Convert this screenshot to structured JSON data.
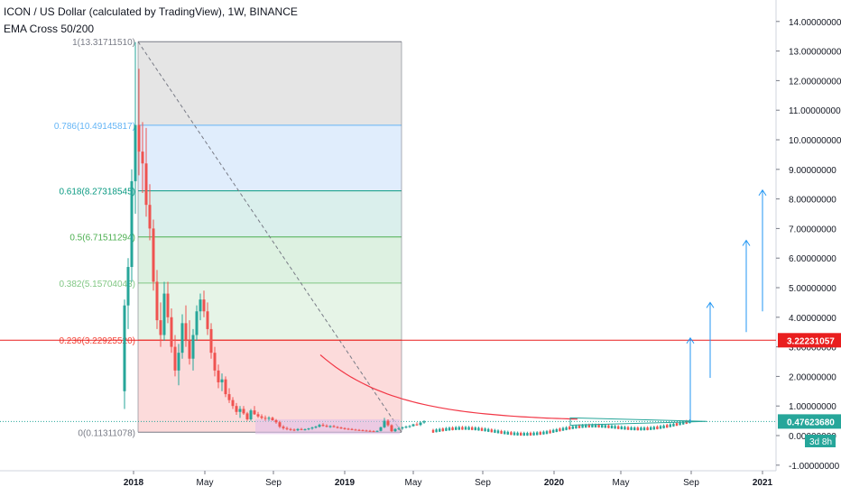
{
  "header": {
    "title": "ICON / US Dollar (calculated by TradingView), 1W, BINANCE",
    "indicator": "EMA Cross 50/200"
  },
  "colors": {
    "up": "#26a69a",
    "down": "#ef5350",
    "price_line": "#e91e1e",
    "last_price": "#26a69a",
    "arrow": "#2196f3",
    "ema": "#f23645"
  },
  "chart_data": {
    "type": "candlestick",
    "symbol": "ICX/USD",
    "timeframe": "1W",
    "y_axis": {
      "min": -1.0,
      "max": 14.0,
      "ticks": [
        "-1.00000000",
        "0.00000000",
        "1.00000000",
        "2.00000000",
        "3.00000000",
        "4.00000000",
        "5.00000000",
        "6.00000000",
        "7.00000000",
        "8.00000000",
        "9.00000000",
        "10.00000000",
        "11.00000000",
        "12.00000000",
        "13.00000000",
        "14.00000000"
      ]
    },
    "x_axis": {
      "ticks": [
        "2018",
        "May",
        "Sep",
        "2019",
        "May",
        "Sep",
        "2020",
        "May",
        "Sep",
        "2021"
      ]
    },
    "fibonacci": [
      {
        "label": "1(13.31711510)",
        "level": 1,
        "price": 13.3171151,
        "color": "#787b86"
      },
      {
        "label": "0.786(10.49145817)",
        "level": 0.786,
        "price": 10.49145817,
        "color": "#64b5f6"
      },
      {
        "label": "0.618(8.27318545)",
        "level": 0.618,
        "price": 8.27318545,
        "color": "#089981"
      },
      {
        "label": "0.5(6.71511294)",
        "level": 0.5,
        "price": 6.71511294,
        "color": "#4caf50"
      },
      {
        "label": "0.382(5.15704043)",
        "level": 0.382,
        "price": 5.15704043,
        "color": "#81c784"
      },
      {
        "label": "0.236(3.22925520)",
        "level": 0.236,
        "price": 3.2292552,
        "color": "#f44336"
      },
      {
        "label": "0(0.11311078)",
        "level": 0,
        "price": 0.11311078,
        "color": "#787b86"
      }
    ],
    "price_labels": {
      "horizontal_line": "3.22231057",
      "last_price": "0.47623680",
      "countdown": "3d 8h"
    },
    "candles": [
      [
        1.5,
        4.6,
        0.9,
        4.4
      ],
      [
        4.4,
        6.0,
        3.6,
        5.7
      ],
      [
        5.7,
        9.0,
        5.2,
        8.6
      ],
      [
        8.6,
        13.3,
        7.5,
        10.5
      ],
      [
        10.5,
        12.4,
        8.8,
        9.6
      ],
      [
        9.6,
        10.6,
        8.2,
        9.2
      ],
      [
        9.2,
        10.4,
        7.4,
        7.8
      ],
      [
        7.8,
        8.5,
        6.6,
        7.0
      ],
      [
        7.0,
        7.3,
        4.9,
        5.2
      ],
      [
        5.2,
        5.6,
        3.6,
        3.9
      ],
      [
        3.9,
        4.5,
        3.0,
        3.4
      ],
      [
        3.4,
        5.2,
        3.2,
        4.8
      ],
      [
        4.8,
        5.2,
        3.8,
        4.0
      ],
      [
        4.0,
        4.3,
        2.8,
        3.0
      ],
      [
        3.0,
        3.4,
        2.0,
        2.2
      ],
      [
        2.2,
        3.1,
        1.7,
        2.8
      ],
      [
        2.8,
        4.1,
        2.6,
        3.8
      ],
      [
        3.8,
        4.4,
        3.0,
        3.2
      ],
      [
        3.2,
        3.9,
        2.4,
        2.6
      ],
      [
        2.6,
        3.6,
        2.2,
        3.4
      ],
      [
        3.4,
        4.4,
        3.2,
        4.2
      ],
      [
        4.2,
        4.8,
        3.9,
        4.6
      ],
      [
        4.6,
        4.9,
        4.0,
        4.2
      ],
      [
        4.2,
        4.5,
        3.4,
        3.6
      ],
      [
        3.6,
        3.8,
        2.6,
        2.8
      ],
      [
        2.8,
        3.0,
        2.0,
        2.2
      ],
      [
        2.2,
        2.4,
        1.6,
        1.8
      ],
      [
        1.8,
        2.1,
        1.5,
        1.9
      ],
      [
        1.9,
        2.0,
        1.3,
        1.4
      ],
      [
        1.4,
        1.6,
        1.1,
        1.2
      ],
      [
        1.2,
        1.3,
        0.9,
        1.0
      ],
      [
        1.0,
        1.1,
        0.7,
        0.8
      ],
      [
        0.8,
        1.0,
        0.6,
        0.9
      ],
      [
        0.9,
        1.0,
        0.7,
        0.75
      ],
      [
        0.75,
        0.8,
        0.5,
        0.55
      ],
      [
        0.55,
        0.9,
        0.5,
        0.85
      ],
      [
        0.85,
        1.0,
        0.7,
        0.72
      ],
      [
        0.72,
        0.8,
        0.6,
        0.65
      ],
      [
        0.65,
        0.72,
        0.55,
        0.6
      ],
      [
        0.6,
        0.68,
        0.5,
        0.58
      ],
      [
        0.58,
        0.65,
        0.5,
        0.6
      ],
      [
        0.6,
        0.64,
        0.5,
        0.52
      ],
      [
        0.52,
        0.56,
        0.4,
        0.45
      ],
      [
        0.45,
        0.5,
        0.25,
        0.3
      ],
      [
        0.3,
        0.35,
        0.2,
        0.25
      ],
      [
        0.25,
        0.3,
        0.18,
        0.22
      ],
      [
        0.22,
        0.26,
        0.16,
        0.2
      ],
      [
        0.2,
        0.24,
        0.15,
        0.18
      ],
      [
        0.18,
        0.25,
        0.15,
        0.22
      ],
      [
        0.22,
        0.26,
        0.18,
        0.2
      ],
      [
        0.2,
        0.24,
        0.17,
        0.21
      ],
      [
        0.21,
        0.26,
        0.18,
        0.24
      ],
      [
        0.24,
        0.3,
        0.2,
        0.27
      ],
      [
        0.27,
        0.33,
        0.24,
        0.3
      ],
      [
        0.3,
        0.4,
        0.27,
        0.36
      ],
      [
        0.36,
        0.42,
        0.3,
        0.33
      ],
      [
        0.33,
        0.38,
        0.28,
        0.3
      ],
      [
        0.3,
        0.35,
        0.26,
        0.32
      ],
      [
        0.32,
        0.36,
        0.27,
        0.29
      ],
      [
        0.29,
        0.32,
        0.24,
        0.27
      ],
      [
        0.27,
        0.3,
        0.22,
        0.25
      ],
      [
        0.25,
        0.28,
        0.2,
        0.23
      ],
      [
        0.23,
        0.26,
        0.19,
        0.22
      ],
      [
        0.22,
        0.25,
        0.18,
        0.2
      ],
      [
        0.2,
        0.23,
        0.17,
        0.19
      ],
      [
        0.19,
        0.22,
        0.16,
        0.18
      ],
      [
        0.18,
        0.21,
        0.15,
        0.17
      ],
      [
        0.17,
        0.2,
        0.14,
        0.16
      ],
      [
        0.16,
        0.19,
        0.13,
        0.15
      ],
      [
        0.15,
        0.18,
        0.12,
        0.14
      ],
      [
        0.14,
        0.17,
        0.12,
        0.16
      ],
      [
        0.16,
        0.3,
        0.14,
        0.28
      ],
      [
        0.28,
        0.6,
        0.25,
        0.5
      ],
      [
        0.5,
        0.55,
        0.3,
        0.35
      ],
      [
        0.35,
        0.38,
        0.12,
        0.15
      ],
      [
        0.15,
        0.25,
        0.12,
        0.22
      ],
      [
        0.22,
        0.3,
        0.18,
        0.25
      ],
      [
        0.25,
        0.3,
        0.2,
        0.28
      ],
      [
        0.28,
        0.34,
        0.24,
        0.3
      ],
      [
        0.3,
        0.36,
        0.26,
        0.32
      ],
      [
        0.32,
        0.4,
        0.3,
        0.38
      ],
      [
        0.38,
        0.45,
        0.33,
        0.36
      ],
      [
        0.36,
        0.48,
        0.32,
        0.44
      ],
      [
        0.44,
        0.52,
        0.4,
        0.48
      ]
    ],
    "curve": "exponential decline from Sep 2019 to early 2020"
  }
}
